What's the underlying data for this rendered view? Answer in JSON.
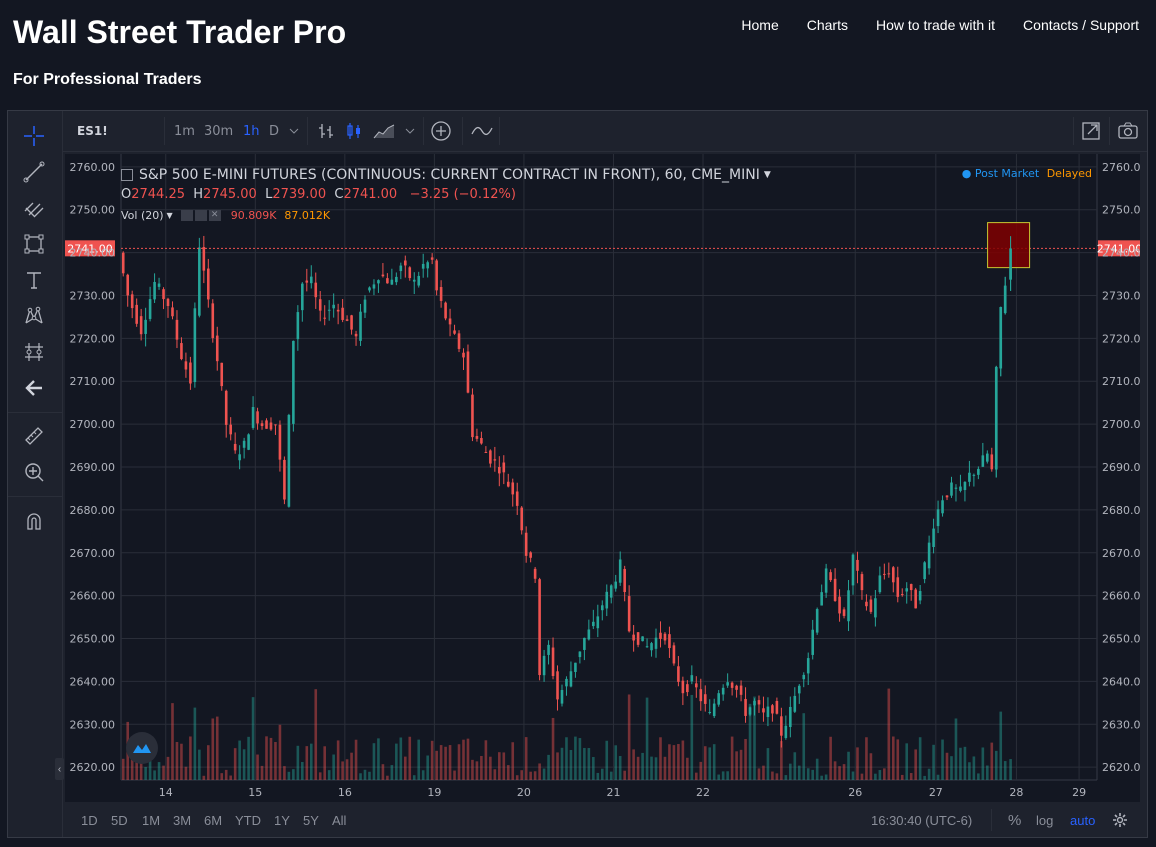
{
  "site": {
    "title": "Wall Street Trader Pro",
    "subtitle": "For Professional Traders",
    "nav": [
      "Home",
      "Charts",
      "How to trade with it",
      "Contacts / Support"
    ]
  },
  "toolbar": {
    "symbol": "ES1!",
    "intervals": [
      "1m",
      "30m",
      "1h",
      "D"
    ],
    "active_interval": "1h"
  },
  "left_tools": [
    "crosshair-icon",
    "trend-line-icon",
    "pitchfork-icon",
    "rectangle-icon",
    "text-icon",
    "pattern-icon",
    "measure-icon",
    "back-arrow-icon",
    "ruler-icon",
    "zoom-in-icon",
    "magnet-icon"
  ],
  "legend": {
    "title": "S&P 500 E-MINI FUTURES (CONTINUOUS: CURRENT CONTRACT IN FRONT), 60, CME_MINI",
    "o_label": "O",
    "o_value": "2744.25",
    "h_label": "H",
    "h_value": "2745.00",
    "l_label": "L",
    "l_value": "2739.00",
    "c_label": "C",
    "c_value": "2741.00",
    "change": "−3.25 (−0.12%)",
    "vol_label": "Vol (20)",
    "vol_value": "90.809K",
    "vol_ma": "87.012K",
    "post_market": "Post Market",
    "delayed": "Delayed"
  },
  "price_label": "2741.00",
  "bottom": {
    "ranges": [
      "1D",
      "5D",
      "1M",
      "3M",
      "6M",
      "YTD",
      "1Y",
      "5Y",
      "All"
    ],
    "time": "16:30:40 (UTC-6)",
    "percent": "%",
    "log": "log",
    "auto": "auto"
  },
  "colors": {
    "up": "#26a69a",
    "down": "#ef5350",
    "bg": "#131722",
    "panel": "#1e222d",
    "accent": "#2962ff"
  },
  "chart_data": {
    "type": "candlestick",
    "title": "S&P 500 E-MINI FUTURES (CONTINUOUS: CURRENT CONTRACT IN FRONT), 60, CME_MINI",
    "ylim": [
      2617,
      2763
    ],
    "y_ticks": [
      "2760.00",
      "2750.00",
      "2740.00",
      "2730.00",
      "2720.00",
      "2710.00",
      "2700.00",
      "2690.00",
      "2680.00",
      "2670.00",
      "2660.00",
      "2650.00",
      "2640.00",
      "2630.00",
      "2620.00"
    ],
    "x_ticks": [
      "14",
      "15",
      "16",
      "19",
      "20",
      "21",
      "22",
      "26",
      "27",
      "28",
      "29"
    ],
    "last_price": 2741.0,
    "price_path": [
      [
        13.5,
        2740
      ],
      [
        13.6,
        2730
      ],
      [
        13.75,
        2722
      ],
      [
        13.9,
        2733
      ],
      [
        14.05,
        2728
      ],
      [
        14.2,
        2716
      ],
      [
        14.3,
        2710
      ],
      [
        14.4,
        2742
      ],
      [
        14.5,
        2728
      ],
      [
        14.6,
        2715
      ],
      [
        14.7,
        2700
      ],
      [
        14.8,
        2693
      ],
      [
        14.9,
        2695
      ],
      [
        15.0,
        2703
      ],
      [
        15.1,
        2700
      ],
      [
        15.25,
        2700
      ],
      [
        15.35,
        2682
      ],
      [
        15.45,
        2720
      ],
      [
        15.55,
        2733
      ],
      [
        15.65,
        2733
      ],
      [
        15.75,
        2725
      ],
      [
        15.9,
        2728
      ],
      [
        16.05,
        2724
      ],
      [
        16.15,
        2720
      ],
      [
        16.25,
        2730
      ],
      [
        16.4,
        2735
      ],
      [
        16.55,
        2733
      ],
      [
        16.65,
        2737
      ],
      [
        16.8,
        2733
      ],
      [
        16.9,
        2737
      ],
      [
        17.0,
        2738
      ],
      [
        17.05,
        2731
      ],
      [
        17.2,
        2722
      ],
      [
        17.35,
        2716
      ],
      [
        17.45,
        2698
      ],
      [
        17.55,
        2695
      ],
      [
        17.65,
        2692
      ],
      [
        17.75,
        2690
      ],
      [
        17.85,
        2686
      ],
      [
        17.95,
        2682
      ],
      [
        18.05,
        2670
      ],
      [
        18.15,
        2665
      ],
      [
        18.2,
        2642
      ],
      [
        18.3,
        2648
      ],
      [
        18.4,
        2636
      ],
      [
        18.5,
        2640
      ],
      [
        18.6,
        2645
      ],
      [
        18.7,
        2650
      ],
      [
        18.8,
        2653
      ],
      [
        18.9,
        2658
      ],
      [
        19.0,
        2662
      ],
      [
        19.1,
        2667
      ],
      [
        19.2,
        2652
      ],
      [
        19.3,
        2650
      ],
      [
        19.4,
        2648
      ],
      [
        19.5,
        2650
      ],
      [
        19.6,
        2651
      ],
      [
        19.7,
        2643
      ],
      [
        19.8,
        2638
      ],
      [
        19.9,
        2640
      ],
      [
        20.0,
        2636
      ],
      [
        20.1,
        2632
      ],
      [
        20.2,
        2638
      ],
      [
        20.3,
        2641
      ],
      [
        20.4,
        2638
      ],
      [
        20.5,
        2633
      ],
      [
        20.6,
        2635
      ],
      [
        20.7,
        2632
      ],
      [
        20.8,
        2634
      ],
      [
        20.9,
        2628
      ],
      [
        21.0,
        2633
      ],
      [
        21.1,
        2640
      ],
      [
        21.2,
        2646
      ],
      [
        21.3,
        2658
      ],
      [
        21.4,
        2665
      ],
      [
        21.5,
        2660
      ],
      [
        21.6,
        2654
      ],
      [
        21.7,
        2669
      ],
      [
        21.8,
        2660
      ],
      [
        21.9,
        2656
      ],
      [
        22.0,
        2664
      ],
      [
        22.1,
        2666
      ],
      [
        22.2,
        2660
      ],
      [
        22.3,
        2662
      ],
      [
        22.4,
        2658
      ],
      [
        22.5,
        2667
      ],
      [
        22.6,
        2677
      ],
      [
        22.7,
        2683
      ],
      [
        22.8,
        2685
      ],
      [
        22.9,
        2684
      ],
      [
        23.0,
        2688
      ],
      [
        23.1,
        2690
      ],
      [
        23.2,
        2693
      ],
      [
        23.25,
        2689
      ],
      [
        23.3,
        2712
      ],
      [
        23.35,
        2727
      ],
      [
        23.4,
        2733
      ],
      [
        23.47,
        2741
      ]
    ],
    "volume_ylim": [
      0,
      150
    ]
  }
}
